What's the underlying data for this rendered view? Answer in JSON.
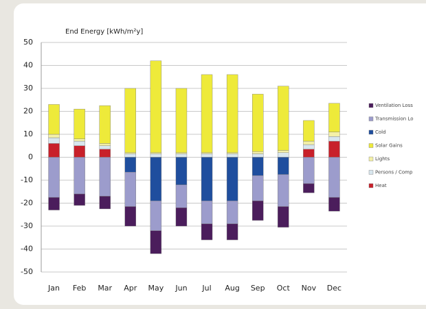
{
  "chart_data": {
    "type": "stacked_bar",
    "title": "End Energy [kWh/m²y]",
    "categories": [
      "Jan",
      "Feb",
      "Mar",
      "Apr",
      "May",
      "Jun",
      "Jul",
      "Aug",
      "Sep",
      "Oct",
      "Nov",
      "Dec"
    ],
    "series": [
      {
        "name": "Ventilation Loss",
        "color": "#4b1d5c",
        "values": [
          -5.5,
          -5,
          -5.5,
          -8.5,
          -10,
          -8,
          -7,
          -7,
          -8.5,
          -9,
          -4,
          -6
        ]
      },
      {
        "name": "Transmission Lo",
        "color": "#9c9ccc",
        "values": [
          -17.5,
          -16,
          -17,
          -15,
          -13,
          -10,
          -10,
          -10,
          -11,
          -14,
          -11.5,
          -17.5
        ]
      },
      {
        "name": "Cold",
        "color": "#1f4e9e",
        "values": [
          0,
          0,
          0,
          -6.5,
          -19,
          -12,
          -19,
          -19,
          -8,
          -7.5,
          0,
          0
        ]
      },
      {
        "name": "Solar Gains",
        "color": "#eeea3a",
        "values": [
          13,
          13,
          16.5,
          28,
          40,
          28,
          34,
          34,
          25,
          28,
          9,
          12.5
        ]
      },
      {
        "name": "Lights",
        "color": "#f4f0a8",
        "values": [
          1.5,
          1,
          1,
          0.5,
          0.5,
          0.5,
          0.5,
          0.5,
          1,
          1,
          1.5,
          2
        ]
      },
      {
        "name": "Persons / Comp",
        "color": "#d8e6ee",
        "values": [
          2.5,
          2,
          1.5,
          1.5,
          1.5,
          1.5,
          1.5,
          1.5,
          1.5,
          2,
          2,
          2
        ]
      },
      {
        "name": "Heat",
        "color": "#c8202a",
        "values": [
          6,
          5,
          3.5,
          0,
          0,
          0,
          0,
          0,
          0,
          0,
          3.5,
          7
        ]
      }
    ],
    "ylim": [
      -50,
      50
    ],
    "yticks": [
      -50,
      -40,
      -30,
      -20,
      -10,
      0,
      10,
      20,
      30,
      40,
      50
    ],
    "grid": true
  }
}
